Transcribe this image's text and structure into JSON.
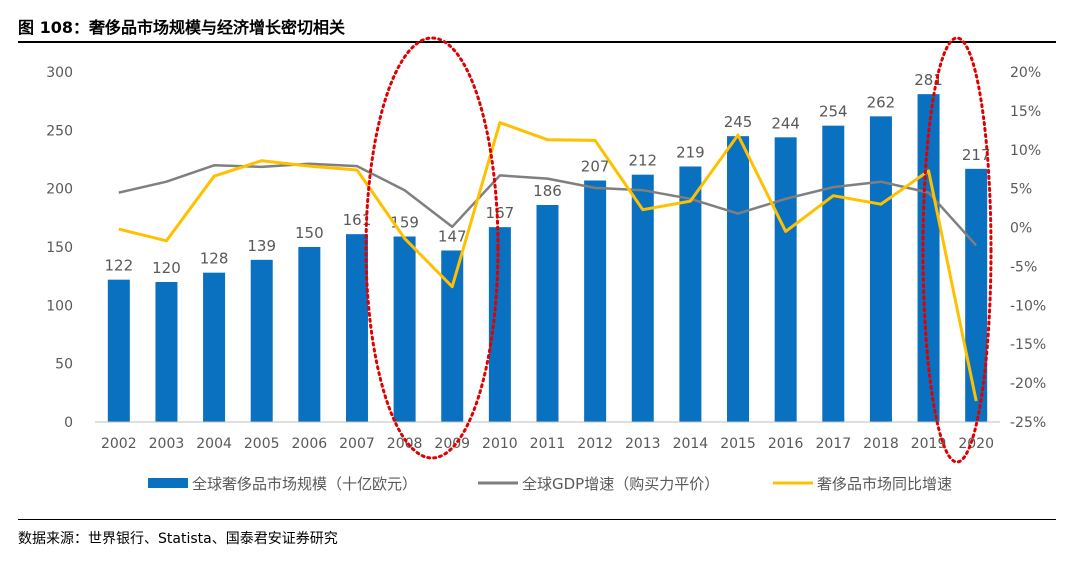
{
  "figure": {
    "title": "图 108：奢侈品市场规模与经济增长密切相关",
    "source": "数据来源：世界银行、Statista、国泰君安证券研究"
  },
  "chart_data": {
    "type": "bar",
    "categories": [
      "2002",
      "2003",
      "2004",
      "2005",
      "2006",
      "2007",
      "2008",
      "2009",
      "2010",
      "2011",
      "2012",
      "2013",
      "2014",
      "2015",
      "2016",
      "2017",
      "2018",
      "2019",
      "2020"
    ],
    "y_left": {
      "ylim": [
        0,
        300
      ],
      "ticks": [
        0,
        50,
        100,
        150,
        200,
        250,
        300
      ]
    },
    "y_right": {
      "ylim": [
        -25,
        20
      ],
      "ticks": [
        -25,
        -20,
        -15,
        -10,
        -5,
        0,
        5,
        10,
        15,
        20
      ],
      "unit": "%"
    },
    "series": [
      {
        "name": "全球奢侈品市场规模（十亿欧元）",
        "type": "bar",
        "axis": "left",
        "color": "#0a70c0",
        "values": [
          122,
          120,
          128,
          139,
          150,
          161,
          159,
          147,
          167,
          186,
          207,
          212,
          219,
          245,
          244,
          254,
          262,
          281,
          217
        ],
        "labels": [
          "122",
          "120",
          "128",
          "139",
          "150",
          "161",
          "159",
          "147",
          "167",
          "186",
          "207",
          "212",
          "219",
          "245",
          "244",
          "254",
          "262",
          "281",
          "217"
        ]
      },
      {
        "name": "全球GDP增速（购买力平价）",
        "type": "line",
        "axis": "right",
        "color": "#7f7f7f",
        "values": [
          4.5,
          5.9,
          8.0,
          7.8,
          8.2,
          7.9,
          4.8,
          0.1,
          6.7,
          6.3,
          5.1,
          4.8,
          3.7,
          1.8,
          3.7,
          5.2,
          5.9,
          4.5,
          -2.3
        ]
      },
      {
        "name": "奢侈品市场同比增速",
        "type": "line",
        "axis": "right",
        "color": "#ffc000",
        "values": [
          -0.2,
          -1.7,
          6.6,
          8.6,
          7.9,
          7.4,
          -1.4,
          -7.6,
          13.5,
          11.3,
          11.2,
          2.3,
          3.4,
          11.9,
          -0.5,
          4.1,
          3.0,
          7.3,
          -22.3
        ]
      }
    ],
    "annotations": [
      "dotted red ellipse around 2008-2009",
      "dotted red ellipse around 2019-2020"
    ],
    "legend_position": "bottom",
    "grid": false
  }
}
